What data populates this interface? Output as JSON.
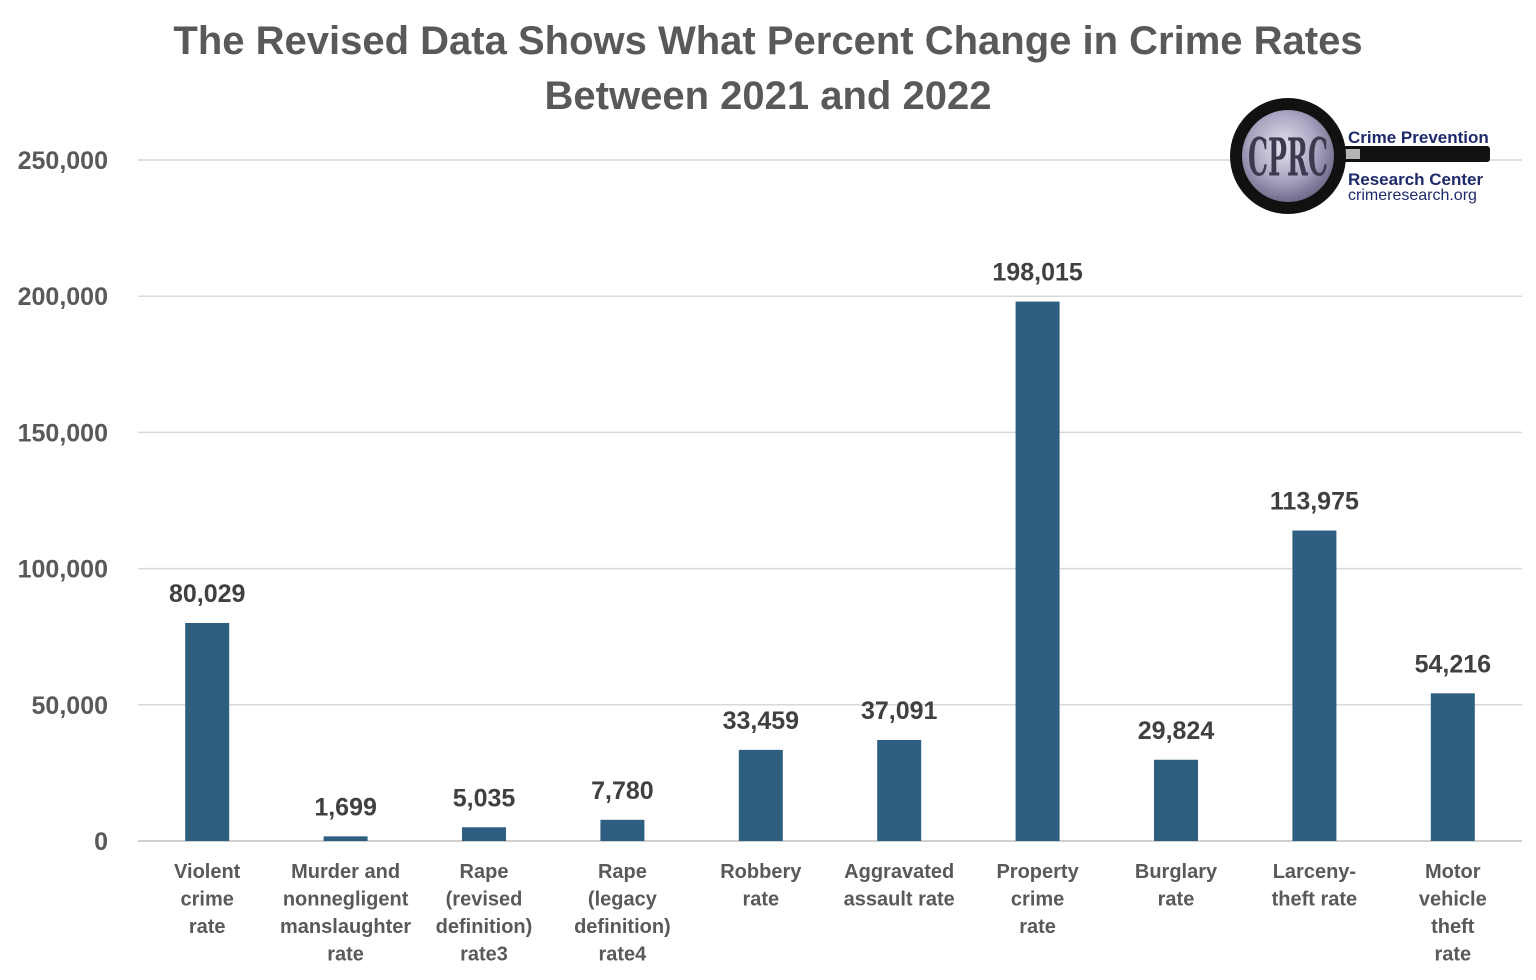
{
  "chart_data": {
    "type": "bar",
    "title": "The Revised Data Shows What Percent Change in Crime Rates Between 2021 and 2022",
    "title_lines": [
      "The Revised Data Shows What Percent Change in Crime Rates",
      "Between 2021 and 2022"
    ],
    "categories": [
      [
        "Violent",
        "crime",
        "rate"
      ],
      [
        "Murder and",
        "nonnegligent",
        "manslaughter",
        "rate"
      ],
      [
        "Rape",
        "(revised",
        "definition)",
        "rate3"
      ],
      [
        "Rape",
        "(legacy",
        "definition)",
        "rate4"
      ],
      [
        "Robbery",
        "rate"
      ],
      [
        "Aggravated",
        "assault rate"
      ],
      [
        "Property",
        "crime",
        "rate"
      ],
      [
        "Burglary",
        "rate"
      ],
      [
        "Larceny-",
        "theft rate"
      ],
      [
        "Motor",
        "vehicle",
        "theft",
        "rate"
      ]
    ],
    "values": [
      80029,
      1699,
      5035,
      7780,
      33459,
      37091,
      198015,
      29824,
      113975,
      54216
    ],
    "data_labels": [
      "80,029",
      "1,699",
      "5,035",
      "7,780",
      "33,459",
      "37,091",
      "198,015",
      "29,824",
      "113,975",
      "54,216"
    ],
    "ylim": [
      0,
      250000
    ],
    "yticks": [
      0,
      50000,
      100000,
      150000,
      200000,
      250000
    ],
    "ytick_labels": [
      "0",
      "50,000",
      "100,000",
      "150,000",
      "200,000",
      "250,000"
    ],
    "xlabel": "",
    "ylabel": "",
    "grid": true,
    "legend": "none",
    "bar_color": "#2e5f80"
  },
  "logo": {
    "monogram": "CPRC",
    "line1": "Crime Prevention",
    "line2": "Research Center",
    "line3": "crimeresearch.org"
  }
}
